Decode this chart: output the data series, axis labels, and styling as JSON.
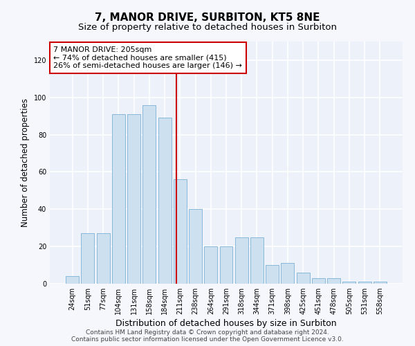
{
  "title": "7, MANOR DRIVE, SURBITON, KT5 8NE",
  "subtitle": "Size of property relative to detached houses in Surbiton",
  "xlabel": "Distribution of detached houses by size in Surbiton",
  "ylabel": "Number of detached properties",
  "categories": [
    "24sqm",
    "51sqm",
    "77sqm",
    "104sqm",
    "131sqm",
    "158sqm",
    "184sqm",
    "211sqm",
    "238sqm",
    "264sqm",
    "291sqm",
    "318sqm",
    "344sqm",
    "371sqm",
    "398sqm",
    "425sqm",
    "451sqm",
    "478sqm",
    "505sqm",
    "531sqm",
    "558sqm"
  ],
  "values": [
    4,
    27,
    27,
    91,
    91,
    96,
    89,
    56,
    40,
    20,
    20,
    25,
    25,
    10,
    11,
    6,
    3,
    3,
    1,
    1,
    1
  ],
  "bar_color": "#cce0f0",
  "bar_edge_color": "#7ab0d4",
  "vline_color": "#cc0000",
  "vline_pos": 6.78,
  "annotation_text": "7 MANOR DRIVE: 205sqm\n← 74% of detached houses are smaller (415)\n26% of semi-detached houses are larger (146) →",
  "annotation_box_facecolor": "#ffffff",
  "annotation_box_edgecolor": "#cc0000",
  "ylim": [
    0,
    130
  ],
  "yticks": [
    0,
    20,
    40,
    60,
    80,
    100,
    120
  ],
  "background_color": "#edf2fa",
  "grid_color": "#ffffff",
  "fig_facecolor": "#f5f7fd",
  "title_fontsize": 11,
  "subtitle_fontsize": 9.5,
  "xlabel_fontsize": 9,
  "ylabel_fontsize": 8.5,
  "tick_fontsize": 7,
  "annotation_fontsize": 8,
  "footer_fontsize": 6.5,
  "footer_text": "Contains HM Land Registry data © Crown copyright and database right 2024.\nContains public sector information licensed under the Open Government Licence v3.0."
}
